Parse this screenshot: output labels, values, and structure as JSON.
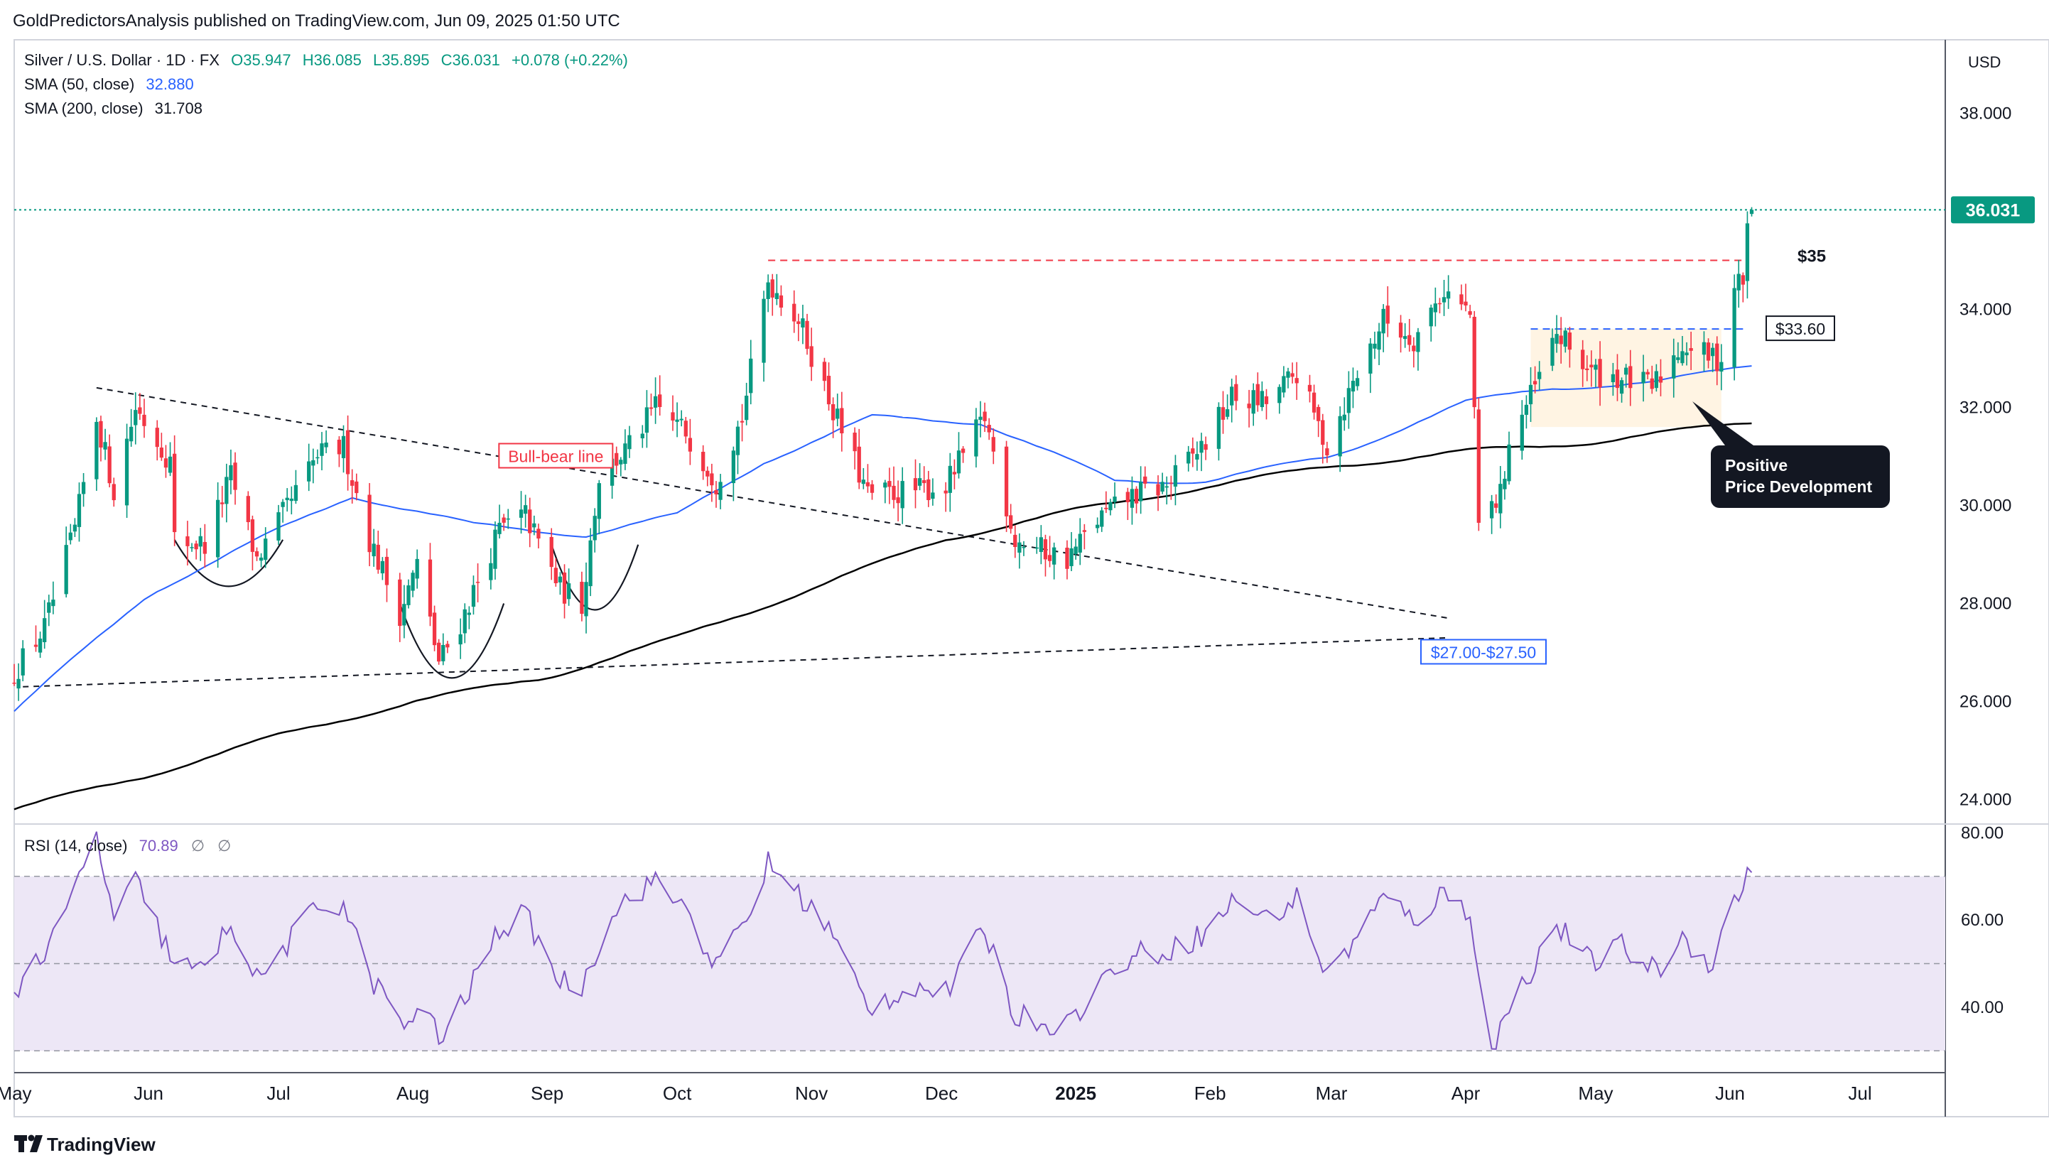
{
  "header": {
    "publisher_line": "GoldPredictorsAnalysis published on TradingView.com, Jun 09, 2025 01:50 UTC"
  },
  "legend": {
    "symbol": "Silver / U.S. Dollar · 1D · FX",
    "open": "O35.947",
    "high": "H36.085",
    "low": "L35.895",
    "close": "C36.031",
    "change": "+0.078 (+0.22%)",
    "sma50_label": "SMA (50, close)",
    "sma50_value": "32.880",
    "sma200_label": "SMA (200, close)",
    "sma200_value": "31.708"
  },
  "rsi_legend": {
    "label": "RSI (14, close)",
    "value": "70.89",
    "extra1": "∅",
    "extra2": "∅"
  },
  "currency": "USD",
  "last_price_label": "36.031",
  "annotations": {
    "bull_bear": "Bull-bear line",
    "level_35": "$35",
    "level_33_60": "$33.60",
    "support_zone": "$27.00-$27.50",
    "positive_line1": "Positive",
    "positive_line2": "Price Development"
  },
  "footer": {
    "brand": "TradingView"
  },
  "colors": {
    "up": "#089981",
    "down": "#f23645",
    "sma50": "#2962ff",
    "sma200": "#000000",
    "rsi": "#7e57c2",
    "rsi_band": "#ede7f6",
    "annotation_red": "#f23645",
    "annotation_blue": "#2962ff",
    "price_tag": "#089981"
  },
  "chart_data": [
    {
      "type": "candlestick",
      "symbol": "Silver / U.S. Dollar",
      "timeframe": "1D",
      "ylim": [
        23.5,
        39.5
      ],
      "y_ticks": [
        "38.000",
        "36.000",
        "34.000",
        "32.000",
        "30.000",
        "28.000",
        "26.000",
        "24.000"
      ],
      "x_ticks": [
        "May",
        "Jun",
        "Jul",
        "Aug",
        "Sep",
        "Oct",
        "Nov",
        "Dec",
        "2025",
        "Feb",
        "Mar",
        "Apr",
        "May",
        "Jun",
        "Jul"
      ],
      "anchors": [
        {
          "date": "2024-05-01",
          "close": 26.6
        },
        {
          "date": "2024-05-08",
          "close": 27.5
        },
        {
          "date": "2024-05-15",
          "close": 29.5
        },
        {
          "date": "2024-05-20",
          "close": 31.8
        },
        {
          "date": "2024-05-24",
          "close": 30.3
        },
        {
          "date": "2024-05-29",
          "close": 32.0
        },
        {
          "date": "2024-06-06",
          "close": 30.9
        },
        {
          "date": "2024-06-07",
          "close": 29.3
        },
        {
          "date": "2024-06-14",
          "close": 29.2
        },
        {
          "date": "2024-06-20",
          "close": 30.6
        },
        {
          "date": "2024-06-26",
          "close": 28.9
        },
        {
          "date": "2024-07-02",
          "close": 29.8
        },
        {
          "date": "2024-07-10",
          "close": 31.0
        },
        {
          "date": "2024-07-16",
          "close": 31.2
        },
        {
          "date": "2024-07-22",
          "close": 29.3
        },
        {
          "date": "2024-07-29",
          "close": 27.8
        },
        {
          "date": "2024-08-02",
          "close": 28.8
        },
        {
          "date": "2024-08-07",
          "close": 26.8
        },
        {
          "date": "2024-08-12",
          "close": 27.6
        },
        {
          "date": "2024-08-21",
          "close": 29.5
        },
        {
          "date": "2024-08-27",
          "close": 29.8
        },
        {
          "date": "2024-09-04",
          "close": 28.3
        },
        {
          "date": "2024-09-09",
          "close": 28.0
        },
        {
          "date": "2024-09-13",
          "close": 30.6
        },
        {
          "date": "2024-09-20",
          "close": 31.2
        },
        {
          "date": "2024-09-26",
          "close": 32.0
        },
        {
          "date": "2024-10-03",
          "close": 31.5
        },
        {
          "date": "2024-10-10",
          "close": 30.5
        },
        {
          "date": "2024-10-16",
          "close": 31.8
        },
        {
          "date": "2024-10-22",
          "close": 34.6
        },
        {
          "date": "2024-10-29",
          "close": 33.8
        },
        {
          "date": "2024-11-04",
          "close": 32.4
        },
        {
          "date": "2024-11-14",
          "close": 30.2
        },
        {
          "date": "2024-11-25",
          "close": 30.3
        },
        {
          "date": "2024-12-02",
          "close": 30.4
        },
        {
          "date": "2024-12-11",
          "close": 31.8
        },
        {
          "date": "2024-12-18",
          "close": 29.3
        },
        {
          "date": "2024-12-30",
          "close": 28.9
        },
        {
          "date": "2025-01-06",
          "close": 29.7
        },
        {
          "date": "2025-01-14",
          "close": 30.2
        },
        {
          "date": "2025-01-22",
          "close": 30.4
        },
        {
          "date": "2025-01-31",
          "close": 31.3
        },
        {
          "date": "2025-02-06",
          "close": 32.2
        },
        {
          "date": "2025-02-14",
          "close": 32.1
        },
        {
          "date": "2025-02-21",
          "close": 32.7
        },
        {
          "date": "2025-02-28",
          "close": 31.2
        },
        {
          "date": "2025-03-06",
          "close": 32.5
        },
        {
          "date": "2025-03-13",
          "close": 33.8
        },
        {
          "date": "2025-03-20",
          "close": 33.4
        },
        {
          "date": "2025-03-27",
          "close": 34.4
        },
        {
          "date": "2025-04-02",
          "close": 33.9
        },
        {
          "date": "2025-04-04",
          "close": 29.6
        },
        {
          "date": "2025-04-09",
          "close": 30.2
        },
        {
          "date": "2025-04-11",
          "close": 31.3
        },
        {
          "date": "2025-04-17",
          "close": 32.4
        },
        {
          "date": "2025-04-22",
          "close": 33.5
        },
        {
          "date": "2025-04-30",
          "close": 32.7
        },
        {
          "date": "2025-05-07",
          "close": 32.6
        },
        {
          "date": "2025-05-14",
          "close": 32.4
        },
        {
          "date": "2025-05-21",
          "close": 33.3
        },
        {
          "date": "2025-05-28",
          "close": 33.0
        },
        {
          "date": "2025-05-30",
          "close": 33.0
        },
        {
          "date": "2025-06-02",
          "close": 34.5
        },
        {
          "date": "2025-06-04",
          "close": 34.6
        },
        {
          "date": "2025-06-05",
          "close": 35.6
        },
        {
          "date": "2025-06-06",
          "close": 36.03
        }
      ],
      "last_candle": {
        "open": 35.947,
        "high": 36.085,
        "low": 35.895,
        "close": 36.031
      },
      "sma50_points": [
        {
          "date": "2024-05-01",
          "value": 25.8
        },
        {
          "date": "2024-06-01",
          "value": 28.2
        },
        {
          "date": "2024-07-01",
          "value": 29.5
        },
        {
          "date": "2024-07-18",
          "value": 30.2
        },
        {
          "date": "2024-08-15",
          "value": 29.6
        },
        {
          "date": "2024-09-10",
          "value": 29.4
        },
        {
          "date": "2024-10-01",
          "value": 29.8
        },
        {
          "date": "2024-10-21",
          "value": 30.9
        },
        {
          "date": "2024-11-15",
          "value": 31.8
        },
        {
          "date": "2024-12-10",
          "value": 31.7
        },
        {
          "date": "2025-01-10",
          "value": 30.5
        },
        {
          "date": "2025-01-31",
          "value": 30.5
        },
        {
          "date": "2025-03-01",
          "value": 31.0
        },
        {
          "date": "2025-04-01",
          "value": 32.1
        },
        {
          "date": "2025-04-20",
          "value": 32.4
        },
        {
          "date": "2025-05-15",
          "value": 32.5
        },
        {
          "date": "2025-06-06",
          "value": 32.88
        }
      ],
      "sma200_points": [
        {
          "date": "2024-05-01",
          "value": 23.8
        },
        {
          "date": "2024-06-01",
          "value": 24.5
        },
        {
          "date": "2024-07-01",
          "value": 25.3
        },
        {
          "date": "2024-08-01",
          "value": 26.0
        },
        {
          "date": "2024-09-01",
          "value": 26.5
        },
        {
          "date": "2024-10-01",
          "value": 27.3
        },
        {
          "date": "2024-11-01",
          "value": 28.3
        },
        {
          "date": "2024-12-01",
          "value": 29.3
        },
        {
          "date": "2025-01-01",
          "value": 29.9
        },
        {
          "date": "2025-02-01",
          "value": 30.4
        },
        {
          "date": "2025-03-01",
          "value": 30.8
        },
        {
          "date": "2025-04-01",
          "value": 31.1
        },
        {
          "date": "2025-05-01",
          "value": 31.3
        },
        {
          "date": "2025-06-06",
          "value": 31.708
        }
      ],
      "horizontal_levels": [
        {
          "value": 35.0,
          "from": "2024-10-22",
          "to": "2025-06-05",
          "label": "$35"
        },
        {
          "value": 33.6,
          "from": "2025-04-16",
          "to": "2025-06-04",
          "label": "$33.60"
        },
        {
          "value": 36.031,
          "from": "2024-05-01",
          "to": "2025-06-06",
          "label": "36.031"
        }
      ],
      "trendlines": [
        {
          "name": "Bull-bear line",
          "from": {
            "date": "2024-05-20",
            "value": 32.4
          },
          "to": {
            "date": "2025-03-28",
            "value": 27.7
          }
        },
        {
          "name": "support",
          "from": {
            "date": "2024-05-03",
            "value": 26.3
          },
          "to": {
            "date": "2025-03-28",
            "value": 27.3
          }
        }
      ],
      "consolidation_box": {
        "from": "2025-04-16",
        "to": "2025-05-30",
        "low": 31.6,
        "high": 33.6
      }
    },
    {
      "type": "line",
      "name": "RSI (14, close)",
      "ylim": [
        25,
        82
      ],
      "y_ticks": [
        "80.00",
        "60.00",
        "40.00"
      ],
      "levels": [
        70,
        50,
        30
      ],
      "anchors": [
        {
          "date": "2024-05-01",
          "value": 44
        },
        {
          "date": "2024-05-10",
          "value": 55
        },
        {
          "date": "2024-05-20",
          "value": 79
        },
        {
          "date": "2024-05-24",
          "value": 60
        },
        {
          "date": "2024-05-29",
          "value": 69
        },
        {
          "date": "2024-06-07",
          "value": 50
        },
        {
          "date": "2024-06-14",
          "value": 48
        },
        {
          "date": "2024-06-20",
          "value": 60
        },
        {
          "date": "2024-06-26",
          "value": 46
        },
        {
          "date": "2024-07-10",
          "value": 63
        },
        {
          "date": "2024-07-16",
          "value": 64
        },
        {
          "date": "2024-07-22",
          "value": 47
        },
        {
          "date": "2024-07-31",
          "value": 35
        },
        {
          "date": "2024-08-05",
          "value": 40
        },
        {
          "date": "2024-08-07",
          "value": 32
        },
        {
          "date": "2024-08-12",
          "value": 40
        },
        {
          "date": "2024-08-21",
          "value": 58
        },
        {
          "date": "2024-08-27",
          "value": 61
        },
        {
          "date": "2024-09-04",
          "value": 46
        },
        {
          "date": "2024-09-09",
          "value": 45
        },
        {
          "date": "2024-09-16",
          "value": 62
        },
        {
          "date": "2024-09-25",
          "value": 69
        },
        {
          "date": "2024-10-03",
          "value": 63
        },
        {
          "date": "2024-10-10",
          "value": 49
        },
        {
          "date": "2024-10-17",
          "value": 60
        },
        {
          "date": "2024-10-22",
          "value": 73
        },
        {
          "date": "2024-10-29",
          "value": 66
        },
        {
          "date": "2024-11-05",
          "value": 58
        },
        {
          "date": "2024-11-14",
          "value": 40
        },
        {
          "date": "2024-11-25",
          "value": 45
        },
        {
          "date": "2024-12-02",
          "value": 43
        },
        {
          "date": "2024-12-11",
          "value": 58
        },
        {
          "date": "2024-12-18",
          "value": 38
        },
        {
          "date": "2024-12-30",
          "value": 36
        },
        {
          "date": "2025-01-07",
          "value": 46
        },
        {
          "date": "2025-01-14",
          "value": 52
        },
        {
          "date": "2025-01-22",
          "value": 53
        },
        {
          "date": "2025-01-31",
          "value": 57
        },
        {
          "date": "2025-02-07",
          "value": 65
        },
        {
          "date": "2025-02-14",
          "value": 60
        },
        {
          "date": "2025-02-21",
          "value": 65
        },
        {
          "date": "2025-02-28",
          "value": 47
        },
        {
          "date": "2025-03-06",
          "value": 55
        },
        {
          "date": "2025-03-13",
          "value": 65
        },
        {
          "date": "2025-03-20",
          "value": 60
        },
        {
          "date": "2025-03-27",
          "value": 66
        },
        {
          "date": "2025-04-02",
          "value": 62
        },
        {
          "date": "2025-04-07",
          "value": 29
        },
        {
          "date": "2025-04-10",
          "value": 38
        },
        {
          "date": "2025-04-14",
          "value": 45
        },
        {
          "date": "2025-04-22",
          "value": 59
        },
        {
          "date": "2025-04-30",
          "value": 50
        },
        {
          "date": "2025-05-07",
          "value": 54
        },
        {
          "date": "2025-05-15",
          "value": 48
        },
        {
          "date": "2025-05-21",
          "value": 56
        },
        {
          "date": "2025-05-28",
          "value": 50
        },
        {
          "date": "2025-06-02",
          "value": 65
        },
        {
          "date": "2025-06-06",
          "value": 70.89
        }
      ]
    }
  ]
}
